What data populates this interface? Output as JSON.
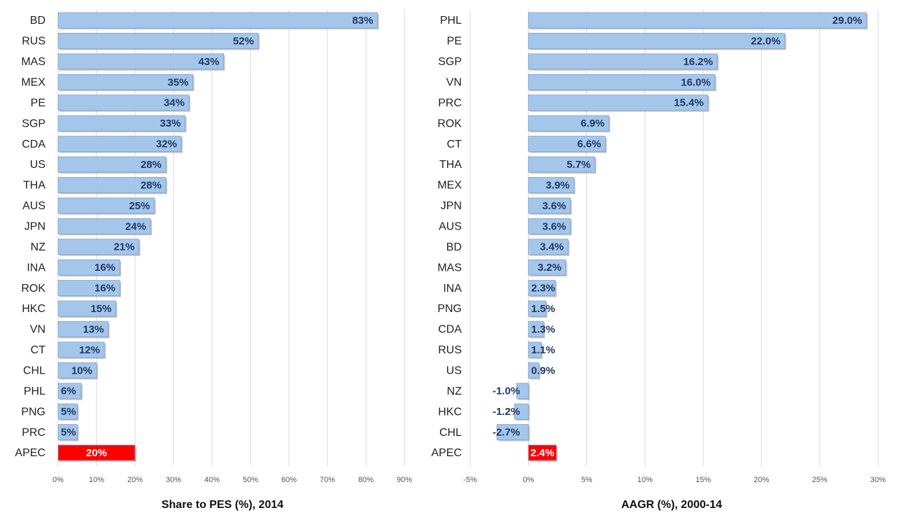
{
  "chart_data": [
    {
      "type": "barh",
      "title": "Share to PES (%),  2014",
      "categories": [
        "BD",
        "RUS",
        "MAS",
        "MEX",
        "PE",
        "SGP",
        "CDA",
        "US",
        "THA",
        "AUS",
        "JPN",
        "NZ",
        "INA",
        "ROK",
        "HKC",
        "VN",
        "CT",
        "CHL",
        "PHL",
        "PNG",
        "PRC",
        "APEC"
      ],
      "values": [
        83,
        52,
        43,
        35,
        34,
        33,
        32,
        28,
        28,
        25,
        24,
        21,
        16,
        16,
        15,
        13,
        12,
        10,
        6,
        5,
        5,
        20
      ],
      "value_labels": [
        "83%",
        "52%",
        "43%",
        "35%",
        "34%",
        "33%",
        "32%",
        "28%",
        "28%",
        "25%",
        "24%",
        "21%",
        "16%",
        "16%",
        "15%",
        "13%",
        "12%",
        "10%",
        "6%",
        "5%",
        "5%",
        "20%"
      ],
      "colors": [
        "#a4c6ea",
        "#a4c6ea",
        "#a4c6ea",
        "#a4c6ea",
        "#a4c6ea",
        "#a4c6ea",
        "#a4c6ea",
        "#a4c6ea",
        "#a4c6ea",
        "#a4c6ea",
        "#a4c6ea",
        "#a4c6ea",
        "#a4c6ea",
        "#a4c6ea",
        "#a4c6ea",
        "#a4c6ea",
        "#a4c6ea",
        "#a4c6ea",
        "#a4c6ea",
        "#a4c6ea",
        "#a4c6ea",
        "#ff0000"
      ],
      "xlim": [
        0,
        90
      ],
      "xticks": [
        {
          "value": 0,
          "label": "0%"
        },
        {
          "value": 10,
          "label": "10%"
        },
        {
          "value": 20,
          "label": "20%"
        },
        {
          "value": 30,
          "label": "30%"
        },
        {
          "value": 40,
          "label": "40%"
        },
        {
          "value": 50,
          "label": "50%"
        },
        {
          "value": 60,
          "label": "60%"
        },
        {
          "value": 70,
          "label": "70%"
        },
        {
          "value": 80,
          "label": "80%"
        },
        {
          "value": 90,
          "label": "90%"
        }
      ],
      "grid": true
    },
    {
      "type": "barh",
      "title": "AAGR (%), 2000-14",
      "categories": [
        "PHL",
        "PE",
        "SGP",
        "VN",
        "PRC",
        "ROK",
        "CT",
        "THA",
        "MEX",
        "JPN",
        "AUS",
        "BD",
        "MAS",
        "INA",
        "PNG",
        "CDA",
        "RUS",
        "US",
        "NZ",
        "HKC",
        "CHL",
        "APEC"
      ],
      "values": [
        29,
        22,
        16.2,
        16,
        15.4,
        6.9,
        6.6,
        5.7,
        3.9,
        3.6,
        3.6,
        3.4,
        3.2,
        2.3,
        1.5,
        1.3,
        1.1,
        0.9,
        -1,
        -1.2,
        -2.7,
        2.4
      ],
      "value_labels": [
        "29.0%",
        "22.0%",
        "16.2%",
        "16.0%",
        "15.4%",
        "6.9%",
        "6.6%",
        "5.7%",
        "3.9%",
        "3.6%",
        "3.6%",
        "3.4%",
        "3.2%",
        "2.3%",
        "1.5%",
        "1.3%",
        "1.1%",
        "0.9%",
        "-1.0%",
        "-1.2%",
        "-2.7%",
        "2.4%"
      ],
      "colors": [
        "#a4c6ea",
        "#a4c6ea",
        "#a4c6ea",
        "#a4c6ea",
        "#a4c6ea",
        "#a4c6ea",
        "#a4c6ea",
        "#a4c6ea",
        "#a4c6ea",
        "#a4c6ea",
        "#a4c6ea",
        "#a4c6ea",
        "#a4c6ea",
        "#a4c6ea",
        "#a4c6ea",
        "#a4c6ea",
        "#a4c6ea",
        "#a4c6ea",
        "#a4c6ea",
        "#a4c6ea",
        "#a4c6ea",
        "#ff0000"
      ],
      "xlim": [
        -5,
        30
      ],
      "xticks": [
        {
          "value": -5,
          "label": "-5%"
        },
        {
          "value": 0,
          "label": "0%"
        },
        {
          "value": 5,
          "label": "5%"
        },
        {
          "value": 10,
          "label": "10%"
        },
        {
          "value": 15,
          "label": "15%"
        },
        {
          "value": 20,
          "label": "20%"
        },
        {
          "value": 25,
          "label": "25%"
        },
        {
          "value": 30,
          "label": "30%"
        }
      ],
      "grid": true
    }
  ]
}
